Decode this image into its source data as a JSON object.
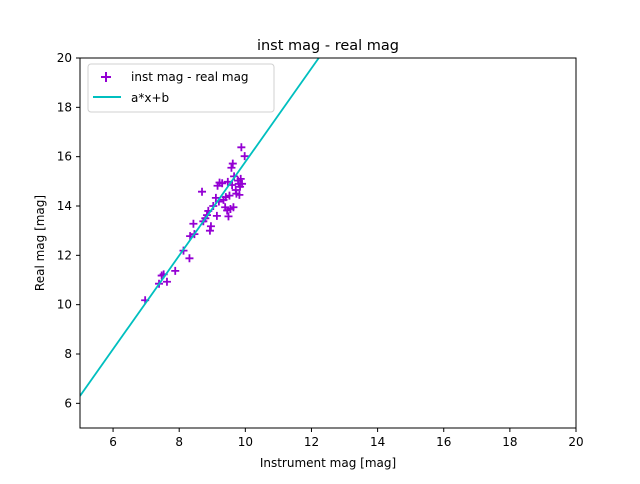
{
  "chart_data": {
    "type": "scatter",
    "title": "inst mag - real mag",
    "xlabel": "Instrument mag [mag]",
    "ylabel": "Real mag [mag]",
    "xlim": [
      5,
      20
    ],
    "ylim": [
      5,
      20
    ],
    "xticks": [
      6,
      8,
      10,
      12,
      14,
      16,
      18,
      20
    ],
    "yticks": [
      6,
      8,
      10,
      12,
      14,
      16,
      18,
      20
    ],
    "grid": false,
    "legend_position": "top-left",
    "series": [
      {
        "name": "inst mag - real mag",
        "kind": "scatter",
        "marker": "plus",
        "color": "#9400d3",
        "points": [
          [
            6.97,
            10.18
          ],
          [
            7.39,
            10.85
          ],
          [
            7.47,
            11.18
          ],
          [
            7.53,
            11.23
          ],
          [
            7.63,
            10.93
          ],
          [
            7.88,
            11.37
          ],
          [
            8.13,
            12.19
          ],
          [
            8.31,
            11.88
          ],
          [
            8.33,
            12.78
          ],
          [
            8.43,
            13.28
          ],
          [
            8.46,
            12.86
          ],
          [
            8.69,
            14.58
          ],
          [
            8.73,
            13.38
          ],
          [
            8.79,
            13.5
          ],
          [
            8.84,
            13.63
          ],
          [
            8.88,
            13.8
          ],
          [
            8.93,
            13.0
          ],
          [
            8.96,
            13.18
          ],
          [
            9.03,
            14.0
          ],
          [
            9.11,
            14.33
          ],
          [
            9.14,
            13.6
          ],
          [
            9.16,
            14.82
          ],
          [
            9.2,
            14.18
          ],
          [
            9.22,
            14.95
          ],
          [
            9.3,
            14.92
          ],
          [
            9.34,
            14.25
          ],
          [
            9.39,
            13.95
          ],
          [
            9.41,
            14.36
          ],
          [
            9.45,
            13.82
          ],
          [
            9.47,
            14.98
          ],
          [
            9.49,
            13.58
          ],
          [
            9.52,
            14.42
          ],
          [
            9.55,
            13.88
          ],
          [
            9.58,
            15.55
          ],
          [
            9.6,
            14.85
          ],
          [
            9.62,
            15.72
          ],
          [
            9.64,
            13.95
          ],
          [
            9.66,
            15.2
          ],
          [
            9.71,
            14.65
          ],
          [
            9.73,
            14.5
          ],
          [
            9.78,
            15.03
          ],
          [
            9.8,
            14.9
          ],
          [
            9.82,
            14.45
          ],
          [
            9.84,
            14.78
          ],
          [
            9.86,
            15.1
          ],
          [
            9.88,
            16.38
          ],
          [
            9.9,
            14.9
          ],
          [
            9.98,
            16.02
          ]
        ]
      },
      {
        "name": "a*x+b",
        "kind": "line",
        "color": "#00bfbf",
        "points": [
          [
            5,
            6.3
          ],
          [
            12.22,
            20
          ]
        ]
      }
    ]
  }
}
